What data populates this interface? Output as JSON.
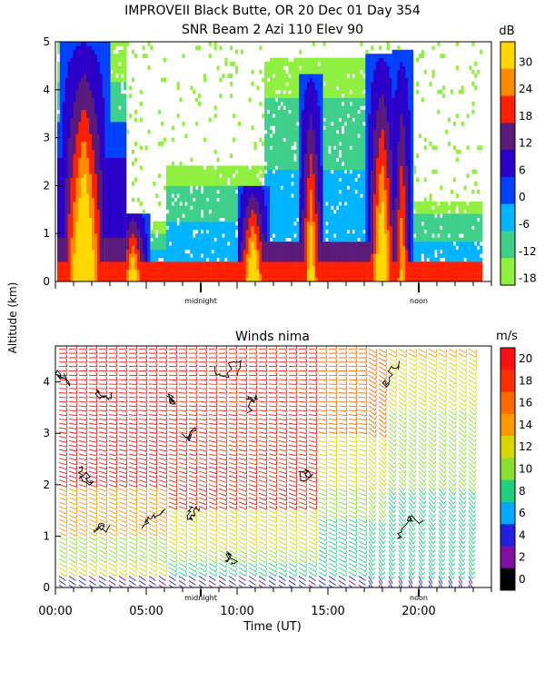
{
  "chart_data": [
    {
      "type": "heatmap",
      "title": "IMPROVEII  Black Butte, OR  20 Dec 01 Day 354",
      "subtitle": "SNR Beam 2 Azi 110 Elev 90",
      "ylabel": "Altitude (km)",
      "ylim": [
        0,
        5
      ],
      "yticks": [
        "0",
        "1",
        "2",
        "3",
        "4",
        "5"
      ],
      "markers": [
        {
          "label": "midnight",
          "hour": 8.0
        },
        {
          "label": "noon",
          "hour": 20.0
        }
      ],
      "colorbar": {
        "unit": "dB",
        "ticks": [
          "30",
          "24",
          "18",
          "12",
          "6",
          "0",
          "-6",
          "-12",
          "-18"
        ],
        "colors": [
          "#ffd700",
          "#ff8c00",
          "#ff2000",
          "#5a1a7a",
          "#2a00c8",
          "#0040ff",
          "#00b4ff",
          "#3ed08a",
          "#90f040"
        ]
      },
      "structure": [
        {
          "t0": 0.0,
          "t1": 3.8,
          "top": 5.0,
          "core": 3.3
        },
        {
          "t0": 3.8,
          "t1": 6.0,
          "top": 1.2,
          "core": 0.3
        },
        {
          "t0": 6.0,
          "t1": 11.5,
          "top": 2.4,
          "core": 0.4
        },
        {
          "t0": 11.5,
          "t1": 18.5,
          "top": 4.6,
          "core": 0.8
        },
        {
          "t0": 18.5,
          "t1": 23.5,
          "top": 1.6,
          "core": 0.3
        }
      ]
    },
    {
      "type": "scatter",
      "title": "Winds nima",
      "xlabel": "Time (UT)",
      "ylabel": "Altitude (km)",
      "xlim": [
        0,
        24
      ],
      "ylim": [
        0,
        4.7
      ],
      "xticks": [
        "00:00",
        "05:00",
        "10:00",
        "15:00",
        "20:00"
      ],
      "yticks": [
        "0",
        "1",
        "2",
        "3",
        "4"
      ],
      "markers": [
        {
          "label": "midnight",
          "hour": 8.0
        },
        {
          "label": "noon",
          "hour": 20.0
        }
      ],
      "colorbar": {
        "unit": "m/s",
        "ticks": [
          "20",
          "18",
          "16",
          "14",
          "12",
          "10",
          "8",
          "6",
          "4",
          "2",
          "0"
        ],
        "colors": [
          "#ff1010",
          "#ff3000",
          "#ff6a00",
          "#ff9900",
          "#d8d800",
          "#8ae030",
          "#20d080",
          "#00aaff",
          "#2020e0",
          "#8010a0",
          "#000000"
        ]
      },
      "wind_field": [
        {
          "period": "00:00-06:00",
          "low_km": "0-1",
          "speed_ms": 12,
          "high_km": "2-4.7",
          "speed_high_ms": 20
        },
        {
          "period": "06:00-14:00",
          "low_km": "0-1",
          "speed_ms": 10,
          "high_km": "1-4.7",
          "speed_high_ms": 20
        },
        {
          "period": "14:00-18:00",
          "low_km": "0-2",
          "speed_ms": 8,
          "high_km": "3-4.7",
          "speed_high_ms": 18
        },
        {
          "period": "18:00-23:00",
          "low_km": "0-3",
          "speed_ms": 8,
          "high_km": "3.5-4.7",
          "speed_high_ms": 12
        }
      ]
    }
  ]
}
